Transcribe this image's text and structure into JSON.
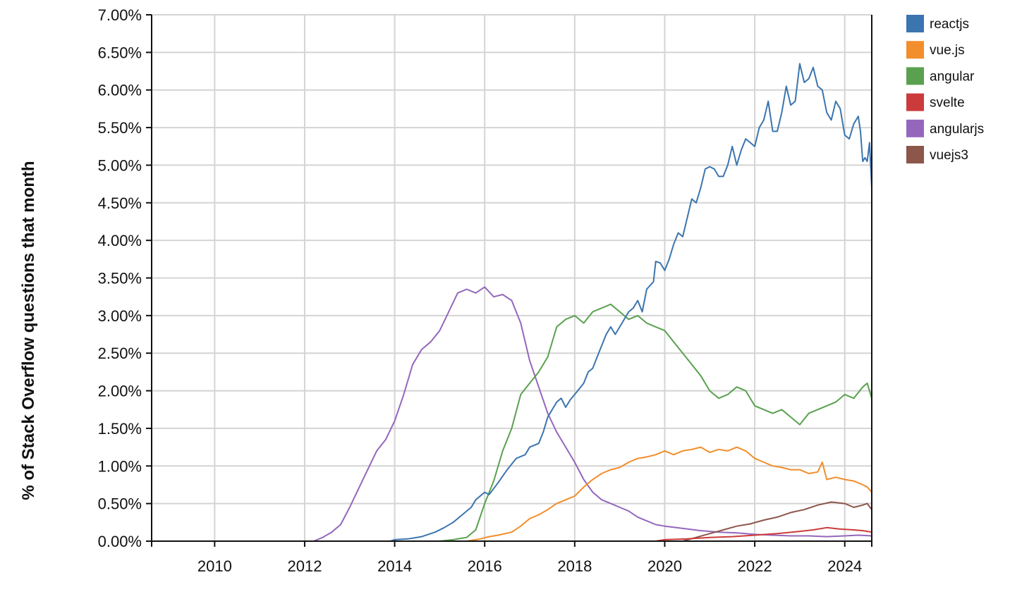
{
  "chart_data": {
    "type": "line",
    "title": "",
    "xlabel": "",
    "ylabel": "% of Stack Overflow questions that month",
    "xlim": [
      2008.6,
      2024.6
    ],
    "ylim": [
      0,
      7.0
    ],
    "x_ticks": [
      {
        "value": 2010,
        "label": "2010"
      },
      {
        "value": 2012,
        "label": "2012"
      },
      {
        "value": 2014,
        "label": "2014"
      },
      {
        "value": 2016,
        "label": "2016"
      },
      {
        "value": 2018,
        "label": "2018"
      },
      {
        "value": 2020,
        "label": "2020"
      },
      {
        "value": 2022,
        "label": "2022"
      },
      {
        "value": 2024,
        "label": "2024"
      }
    ],
    "y_ticks": [
      {
        "value": 0.0,
        "label": "0.00%"
      },
      {
        "value": 0.5,
        "label": "0.50%"
      },
      {
        "value": 1.0,
        "label": "1.00%"
      },
      {
        "value": 1.5,
        "label": "1.50%"
      },
      {
        "value": 2.0,
        "label": "2.00%"
      },
      {
        "value": 2.5,
        "label": "2.50%"
      },
      {
        "value": 3.0,
        "label": "3.00%"
      },
      {
        "value": 3.5,
        "label": "3.50%"
      },
      {
        "value": 4.0,
        "label": "4.00%"
      },
      {
        "value": 4.5,
        "label": "4.50%"
      },
      {
        "value": 5.0,
        "label": "5.00%"
      },
      {
        "value": 5.5,
        "label": "5.50%"
      },
      {
        "value": 6.0,
        "label": "6.00%"
      },
      {
        "value": 6.5,
        "label": "6.50%"
      },
      {
        "value": 7.0,
        "label": "7.00%"
      }
    ],
    "grid": true,
    "legend_position": "top-right",
    "series": [
      {
        "name": "reactjs",
        "color": "#3b75af",
        "points": [
          [
            2008.6,
            0.0
          ],
          [
            2013.9,
            0.0
          ],
          [
            2014.0,
            0.02
          ],
          [
            2014.3,
            0.03
          ],
          [
            2014.6,
            0.06
          ],
          [
            2014.9,
            0.12
          ],
          [
            2015.1,
            0.18
          ],
          [
            2015.3,
            0.25
          ],
          [
            2015.5,
            0.35
          ],
          [
            2015.7,
            0.45
          ],
          [
            2015.8,
            0.55
          ],
          [
            2016.0,
            0.65
          ],
          [
            2016.1,
            0.62
          ],
          [
            2016.3,
            0.78
          ],
          [
            2016.5,
            0.95
          ],
          [
            2016.7,
            1.1
          ],
          [
            2016.9,
            1.15
          ],
          [
            2017.0,
            1.25
          ],
          [
            2017.2,
            1.3
          ],
          [
            2017.3,
            1.45
          ],
          [
            2017.4,
            1.65
          ],
          [
            2017.6,
            1.85
          ],
          [
            2017.7,
            1.9
          ],
          [
            2017.8,
            1.78
          ],
          [
            2017.9,
            1.88
          ],
          [
            2018.0,
            1.95
          ],
          [
            2018.2,
            2.1
          ],
          [
            2018.3,
            2.25
          ],
          [
            2018.4,
            2.3
          ],
          [
            2018.5,
            2.45
          ],
          [
            2018.6,
            2.6
          ],
          [
            2018.7,
            2.75
          ],
          [
            2018.8,
            2.85
          ],
          [
            2018.9,
            2.75
          ],
          [
            2019.0,
            2.85
          ],
          [
            2019.1,
            2.95
          ],
          [
            2019.2,
            3.05
          ],
          [
            2019.3,
            3.1
          ],
          [
            2019.4,
            3.2
          ],
          [
            2019.5,
            3.05
          ],
          [
            2019.6,
            3.35
          ],
          [
            2019.75,
            3.45
          ],
          [
            2019.8,
            3.72
          ],
          [
            2019.9,
            3.7
          ],
          [
            2020.0,
            3.6
          ],
          [
            2020.1,
            3.75
          ],
          [
            2020.2,
            3.95
          ],
          [
            2020.3,
            4.1
          ],
          [
            2020.4,
            4.05
          ],
          [
            2020.5,
            4.3
          ],
          [
            2020.6,
            4.55
          ],
          [
            2020.7,
            4.5
          ],
          [
            2020.8,
            4.7
          ],
          [
            2020.9,
            4.95
          ],
          [
            2021.0,
            4.98
          ],
          [
            2021.1,
            4.95
          ],
          [
            2021.2,
            4.85
          ],
          [
            2021.3,
            4.85
          ],
          [
            2021.4,
            5.0
          ],
          [
            2021.5,
            5.25
          ],
          [
            2021.6,
            5.0
          ],
          [
            2021.7,
            5.2
          ],
          [
            2021.8,
            5.35
          ],
          [
            2021.9,
            5.3
          ],
          [
            2022.0,
            5.25
          ],
          [
            2022.1,
            5.5
          ],
          [
            2022.2,
            5.6
          ],
          [
            2022.3,
            5.85
          ],
          [
            2022.4,
            5.45
          ],
          [
            2022.5,
            5.45
          ],
          [
            2022.6,
            5.7
          ],
          [
            2022.7,
            6.05
          ],
          [
            2022.8,
            5.8
          ],
          [
            2022.9,
            5.85
          ],
          [
            2023.0,
            6.35
          ],
          [
            2023.1,
            6.1
          ],
          [
            2023.2,
            6.15
          ],
          [
            2023.3,
            6.3
          ],
          [
            2023.4,
            6.05
          ],
          [
            2023.5,
            6.0
          ],
          [
            2023.6,
            5.7
          ],
          [
            2023.7,
            5.6
          ],
          [
            2023.8,
            5.85
          ],
          [
            2023.9,
            5.75
          ],
          [
            2024.0,
            5.4
          ],
          [
            2024.1,
            5.35
          ],
          [
            2024.2,
            5.55
          ],
          [
            2024.3,
            5.65
          ],
          [
            2024.35,
            5.45
          ],
          [
            2024.4,
            5.05
          ],
          [
            2024.45,
            5.1
          ],
          [
            2024.5,
            5.05
          ],
          [
            2024.55,
            5.3
          ],
          [
            2024.6,
            4.7
          ]
        ]
      },
      {
        "name": "vue.js",
        "color": "#f28e2b",
        "points": [
          [
            2008.6,
            0.0
          ],
          [
            2015.6,
            0.0
          ],
          [
            2015.9,
            0.03
          ],
          [
            2016.1,
            0.06
          ],
          [
            2016.3,
            0.08
          ],
          [
            2016.6,
            0.12
          ],
          [
            2016.8,
            0.2
          ],
          [
            2017.0,
            0.3
          ],
          [
            2017.2,
            0.35
          ],
          [
            2017.4,
            0.42
          ],
          [
            2017.6,
            0.5
          ],
          [
            2017.8,
            0.55
          ],
          [
            2018.0,
            0.6
          ],
          [
            2018.2,
            0.72
          ],
          [
            2018.4,
            0.82
          ],
          [
            2018.6,
            0.9
          ],
          [
            2018.8,
            0.95
          ],
          [
            2019.0,
            0.98
          ],
          [
            2019.2,
            1.05
          ],
          [
            2019.4,
            1.1
          ],
          [
            2019.6,
            1.12
          ],
          [
            2019.8,
            1.15
          ],
          [
            2020.0,
            1.2
          ],
          [
            2020.2,
            1.15
          ],
          [
            2020.4,
            1.2
          ],
          [
            2020.6,
            1.22
          ],
          [
            2020.8,
            1.25
          ],
          [
            2021.0,
            1.18
          ],
          [
            2021.2,
            1.22
          ],
          [
            2021.4,
            1.2
          ],
          [
            2021.6,
            1.25
          ],
          [
            2021.8,
            1.2
          ],
          [
            2022.0,
            1.1
          ],
          [
            2022.2,
            1.05
          ],
          [
            2022.4,
            1.0
          ],
          [
            2022.6,
            0.98
          ],
          [
            2022.8,
            0.95
          ],
          [
            2023.0,
            0.95
          ],
          [
            2023.2,
            0.9
          ],
          [
            2023.4,
            0.92
          ],
          [
            2023.5,
            1.05
          ],
          [
            2023.6,
            0.82
          ],
          [
            2023.8,
            0.85
          ],
          [
            2024.0,
            0.82
          ],
          [
            2024.2,
            0.8
          ],
          [
            2024.4,
            0.75
          ],
          [
            2024.5,
            0.72
          ],
          [
            2024.6,
            0.65
          ]
        ]
      },
      {
        "name": "angular",
        "color": "#59a14f",
        "points": [
          [
            2008.6,
            0.0
          ],
          [
            2015.0,
            0.0
          ],
          [
            2015.3,
            0.02
          ],
          [
            2015.6,
            0.05
          ],
          [
            2015.8,
            0.15
          ],
          [
            2016.0,
            0.5
          ],
          [
            2016.2,
            0.8
          ],
          [
            2016.4,
            1.2
          ],
          [
            2016.6,
            1.5
          ],
          [
            2016.8,
            1.95
          ],
          [
            2017.0,
            2.1
          ],
          [
            2017.2,
            2.25
          ],
          [
            2017.4,
            2.45
          ],
          [
            2017.6,
            2.85
          ],
          [
            2017.8,
            2.95
          ],
          [
            2018.0,
            3.0
          ],
          [
            2018.2,
            2.9
          ],
          [
            2018.4,
            3.05
          ],
          [
            2018.6,
            3.1
          ],
          [
            2018.8,
            3.15
          ],
          [
            2019.0,
            3.05
          ],
          [
            2019.2,
            2.95
          ],
          [
            2019.4,
            3.0
          ],
          [
            2019.6,
            2.9
          ],
          [
            2019.8,
            2.85
          ],
          [
            2020.0,
            2.8
          ],
          [
            2020.2,
            2.65
          ],
          [
            2020.4,
            2.5
          ],
          [
            2020.6,
            2.35
          ],
          [
            2020.8,
            2.2
          ],
          [
            2021.0,
            2.0
          ],
          [
            2021.2,
            1.9
          ],
          [
            2021.4,
            1.95
          ],
          [
            2021.6,
            2.05
          ],
          [
            2021.8,
            2.0
          ],
          [
            2022.0,
            1.8
          ],
          [
            2022.2,
            1.75
          ],
          [
            2022.4,
            1.7
          ],
          [
            2022.6,
            1.75
          ],
          [
            2022.8,
            1.65
          ],
          [
            2023.0,
            1.55
          ],
          [
            2023.2,
            1.7
          ],
          [
            2023.4,
            1.75
          ],
          [
            2023.6,
            1.8
          ],
          [
            2023.8,
            1.85
          ],
          [
            2024.0,
            1.95
          ],
          [
            2024.2,
            1.9
          ],
          [
            2024.4,
            2.05
          ],
          [
            2024.5,
            2.1
          ],
          [
            2024.6,
            1.9
          ]
        ]
      },
      {
        "name": "svelte",
        "color": "#cc3b3b",
        "points": [
          [
            2008.6,
            0.0
          ],
          [
            2019.8,
            0.0
          ],
          [
            2020.0,
            0.02
          ],
          [
            2020.5,
            0.03
          ],
          [
            2021.0,
            0.05
          ],
          [
            2021.5,
            0.06
          ],
          [
            2022.0,
            0.08
          ],
          [
            2022.5,
            0.1
          ],
          [
            2023.0,
            0.13
          ],
          [
            2023.3,
            0.15
          ],
          [
            2023.6,
            0.18
          ],
          [
            2023.9,
            0.16
          ],
          [
            2024.2,
            0.15
          ],
          [
            2024.4,
            0.14
          ],
          [
            2024.6,
            0.12
          ]
        ]
      },
      {
        "name": "angularjs",
        "color": "#9467bd",
        "points": [
          [
            2008.6,
            0.0
          ],
          [
            2012.2,
            0.0
          ],
          [
            2012.4,
            0.05
          ],
          [
            2012.6,
            0.12
          ],
          [
            2012.8,
            0.22
          ],
          [
            2013.0,
            0.45
          ],
          [
            2013.2,
            0.7
          ],
          [
            2013.4,
            0.95
          ],
          [
            2013.6,
            1.2
          ],
          [
            2013.8,
            1.35
          ],
          [
            2014.0,
            1.6
          ],
          [
            2014.2,
            1.95
          ],
          [
            2014.4,
            2.35
          ],
          [
            2014.6,
            2.55
          ],
          [
            2014.8,
            2.65
          ],
          [
            2015.0,
            2.8
          ],
          [
            2015.2,
            3.05
          ],
          [
            2015.4,
            3.3
          ],
          [
            2015.6,
            3.35
          ],
          [
            2015.8,
            3.3
          ],
          [
            2016.0,
            3.38
          ],
          [
            2016.2,
            3.25
          ],
          [
            2016.4,
            3.28
          ],
          [
            2016.6,
            3.2
          ],
          [
            2016.8,
            2.9
          ],
          [
            2017.0,
            2.4
          ],
          [
            2017.2,
            2.05
          ],
          [
            2017.4,
            1.7
          ],
          [
            2017.6,
            1.45
          ],
          [
            2017.8,
            1.25
          ],
          [
            2018.0,
            1.05
          ],
          [
            2018.2,
            0.82
          ],
          [
            2018.4,
            0.65
          ],
          [
            2018.6,
            0.55
          ],
          [
            2018.8,
            0.5
          ],
          [
            2019.0,
            0.45
          ],
          [
            2019.2,
            0.4
          ],
          [
            2019.4,
            0.32
          ],
          [
            2019.6,
            0.27
          ],
          [
            2019.8,
            0.22
          ],
          [
            2020.0,
            0.2
          ],
          [
            2020.4,
            0.17
          ],
          [
            2020.8,
            0.14
          ],
          [
            2021.2,
            0.12
          ],
          [
            2021.6,
            0.11
          ],
          [
            2022.0,
            0.09
          ],
          [
            2022.4,
            0.08
          ],
          [
            2022.8,
            0.07
          ],
          [
            2023.2,
            0.07
          ],
          [
            2023.6,
            0.06
          ],
          [
            2024.0,
            0.07
          ],
          [
            2024.3,
            0.08
          ],
          [
            2024.6,
            0.07
          ]
        ]
      },
      {
        "name": "vuejs3",
        "color": "#8c564b",
        "points": [
          [
            2008.6,
            0.0
          ],
          [
            2020.4,
            0.0
          ],
          [
            2020.7,
            0.05
          ],
          [
            2021.0,
            0.1
          ],
          [
            2021.3,
            0.15
          ],
          [
            2021.6,
            0.2
          ],
          [
            2021.9,
            0.23
          ],
          [
            2022.2,
            0.28
          ],
          [
            2022.5,
            0.32
          ],
          [
            2022.8,
            0.38
          ],
          [
            2023.1,
            0.42
          ],
          [
            2023.4,
            0.48
          ],
          [
            2023.7,
            0.52
          ],
          [
            2024.0,
            0.5
          ],
          [
            2024.2,
            0.45
          ],
          [
            2024.4,
            0.48
          ],
          [
            2024.5,
            0.5
          ],
          [
            2024.6,
            0.42
          ]
        ]
      }
    ]
  }
}
